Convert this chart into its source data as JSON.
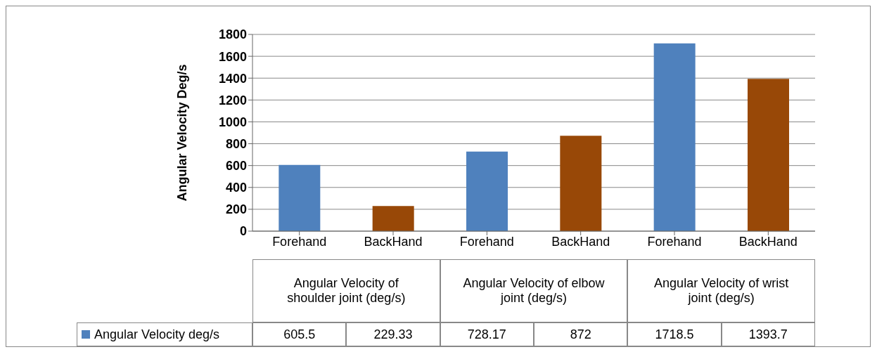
{
  "chart_data": {
    "type": "bar",
    "ylabel": "Angular Velocity Deg/s",
    "categories": [
      "Forehand",
      "BackHand",
      "Forehand",
      "BackHand",
      "Forehand",
      "BackHand"
    ],
    "series": [
      {
        "name": "Angular Velocity deg/s",
        "color": "#4f81bd",
        "colors": [
          "#4f81bd",
          "#984807",
          "#4f81bd",
          "#984807",
          "#4f81bd",
          "#984807"
        ],
        "values": [
          605.5,
          229.33,
          728.17,
          872,
          1718.5,
          1393.7
        ]
      }
    ],
    "annotations": [
      "Angular Velocity of shoulder joint (deg/s)",
      "Angular Velocity of elbow joint (deg/s)",
      "Angular Velocity of wrist joint (deg/s)"
    ],
    "ylim": [
      0,
      1800
    ],
    "yticks": [
      0,
      200,
      400,
      600,
      800,
      1000,
      1200,
      1400,
      1600,
      1800
    ],
    "grid": "y",
    "data_labels": true,
    "legend": "bottom"
  }
}
